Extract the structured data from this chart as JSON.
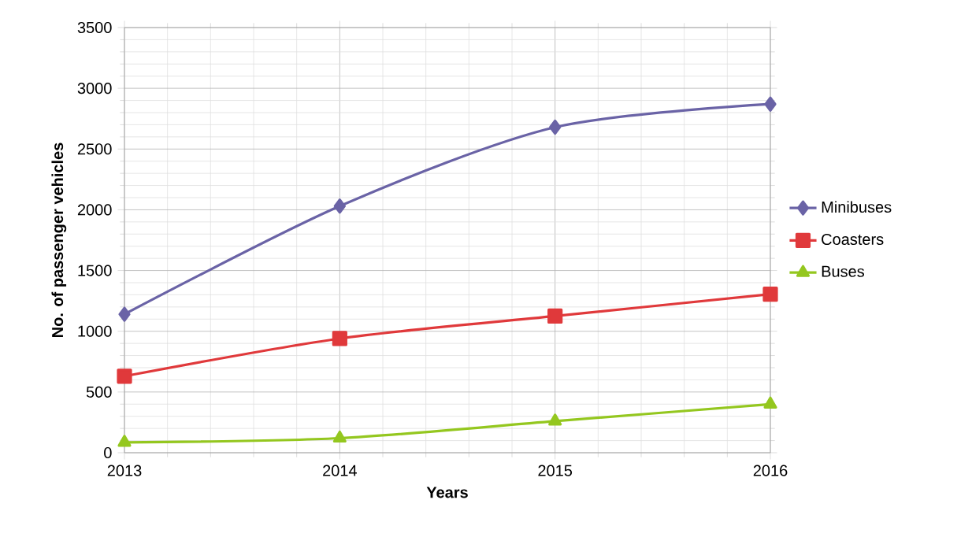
{
  "chart_data": {
    "type": "line",
    "xlabel": "Years",
    "ylabel": "No. of passenger vehicles",
    "x": [
      2013,
      2014,
      2015,
      2016
    ],
    "xlim": [
      2013,
      2016
    ],
    "xticks": [
      2013,
      2014,
      2015,
      2016
    ],
    "ylim": [
      0,
      3500
    ],
    "yticks": [
      0,
      500,
      1000,
      1500,
      2000,
      2500,
      3000,
      3500
    ],
    "series": [
      {
        "name": "Minibuses",
        "color": "#6a63a6",
        "marker": "diamond",
        "values": [
          1140,
          2030,
          2680,
          2870
        ]
      },
      {
        "name": "Coasters",
        "color": "#e0393b",
        "marker": "square",
        "values": [
          630,
          940,
          1125,
          1305
        ]
      },
      {
        "name": "Buses",
        "color": "#94c71f",
        "marker": "triangle",
        "values": [
          85,
          120,
          260,
          400
        ]
      }
    ],
    "grid": true,
    "legend": "right",
    "line_style": "solid"
  }
}
